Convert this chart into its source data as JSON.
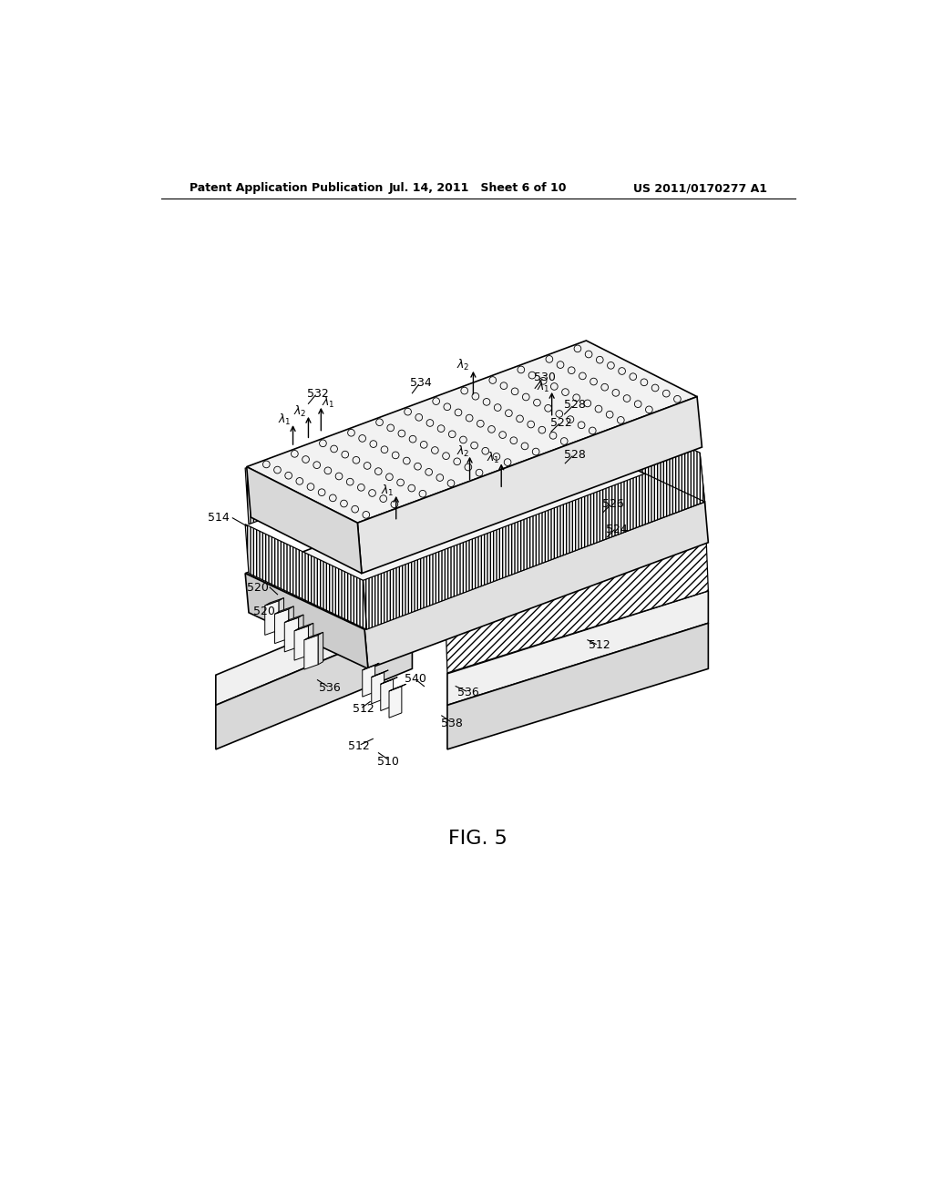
{
  "bg_color": "#ffffff",
  "line_color": "#000000",
  "header_left": "Patent Application Publication",
  "header_mid": "Jul. 14, 2011   Sheet 6 of 10",
  "header_right": "US 2011/0170277 A1",
  "fig_label": "FIG. 5"
}
